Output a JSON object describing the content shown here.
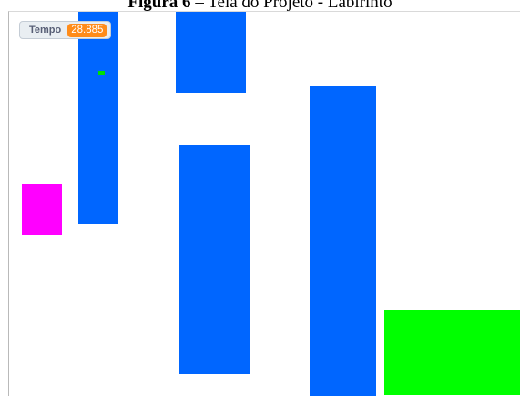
{
  "figure_caption": {
    "label": "Figura 6",
    "separator": " – ",
    "text": "Tela do Projeto - Labirinto"
  },
  "stage": {
    "variable_monitor": {
      "name": "Tempo",
      "value": "28.885"
    },
    "colors": {
      "wall": "#0066ff",
      "player": "#ff00ff",
      "goal": "#00ff00",
      "marker": "#00e000",
      "monitor_value_bg": "#ff8c1a"
    }
  }
}
